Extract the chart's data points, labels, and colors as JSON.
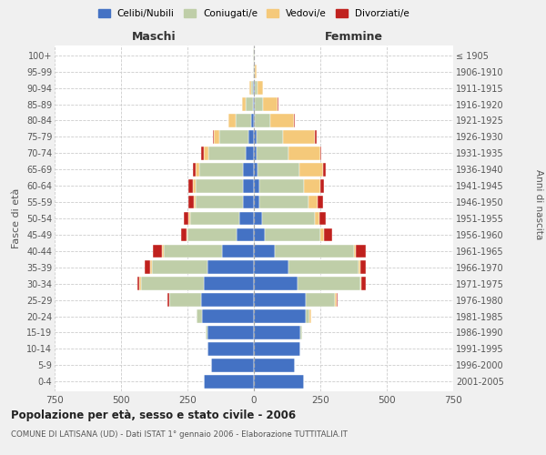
{
  "age_groups": [
    "0-4",
    "5-9",
    "10-14",
    "15-19",
    "20-24",
    "25-29",
    "30-34",
    "35-39",
    "40-44",
    "45-49",
    "50-54",
    "55-59",
    "60-64",
    "65-69",
    "70-74",
    "75-79",
    "80-84",
    "85-89",
    "90-94",
    "95-99",
    "100+"
  ],
  "birth_years": [
    "2001-2005",
    "1996-2000",
    "1991-1995",
    "1986-1990",
    "1981-1985",
    "1976-1980",
    "1971-1975",
    "1966-1970",
    "1961-1965",
    "1956-1960",
    "1951-1955",
    "1946-1950",
    "1941-1945",
    "1936-1940",
    "1931-1935",
    "1926-1930",
    "1921-1925",
    "1916-1920",
    "1911-1915",
    "1906-1910",
    "≤ 1905"
  ],
  "male": {
    "celibi": [
      190,
      160,
      175,
      175,
      195,
      200,
      190,
      175,
      120,
      65,
      55,
      40,
      40,
      40,
      30,
      20,
      10,
      5,
      3,
      1,
      1
    ],
    "coniugati": [
      0,
      0,
      0,
      5,
      20,
      120,
      235,
      210,
      220,
      185,
      185,
      180,
      180,
      165,
      140,
      110,
      60,
      25,
      8,
      2,
      1
    ],
    "vedovi": [
      0,
      0,
      0,
      0,
      0,
      0,
      5,
      5,
      5,
      5,
      5,
      5,
      10,
      15,
      20,
      20,
      25,
      15,
      5,
      1,
      0
    ],
    "divorziati": [
      0,
      0,
      0,
      0,
      2,
      5,
      10,
      20,
      35,
      20,
      20,
      20,
      15,
      10,
      8,
      5,
      2,
      0,
      0,
      0,
      0
    ]
  },
  "female": {
    "nubili": [
      190,
      155,
      175,
      175,
      195,
      195,
      165,
      130,
      80,
      40,
      30,
      20,
      20,
      15,
      10,
      10,
      5,
      5,
      3,
      1,
      1
    ],
    "coniugate": [
      0,
      0,
      0,
      5,
      15,
      110,
      235,
      265,
      295,
      210,
      200,
      185,
      170,
      155,
      120,
      100,
      55,
      30,
      10,
      3,
      1
    ],
    "vedove": [
      0,
      0,
      0,
      0,
      5,
      5,
      5,
      5,
      10,
      15,
      15,
      35,
      60,
      90,
      120,
      120,
      90,
      55,
      20,
      5,
      0
    ],
    "divorziate": [
      0,
      0,
      0,
      0,
      2,
      5,
      15,
      20,
      35,
      30,
      25,
      20,
      15,
      10,
      5,
      8,
      5,
      2,
      0,
      0,
      0
    ]
  },
  "colors": {
    "celibi": "#4472C4",
    "coniugati": "#BFCEA8",
    "vedovi": "#F5C97A",
    "divorziati": "#C0211E"
  },
  "xlim": 750,
  "title": "Popolazione per età, sesso e stato civile - 2006",
  "subtitle": "COMUNE DI LATISANA (UD) - Dati ISTAT 1° gennaio 2006 - Elaborazione TUTTITALIA.IT",
  "ylabel_left": "Fasce di età",
  "ylabel_right": "Anni di nascita",
  "xlabel_left": "Maschi",
  "xlabel_right": "Femmine",
  "legend_labels": [
    "Celibi/Nubili",
    "Coniugati/e",
    "Vedovi/e",
    "Divorziati/e"
  ],
  "background_color": "#f0f0f0",
  "plot_bg": "#ffffff"
}
